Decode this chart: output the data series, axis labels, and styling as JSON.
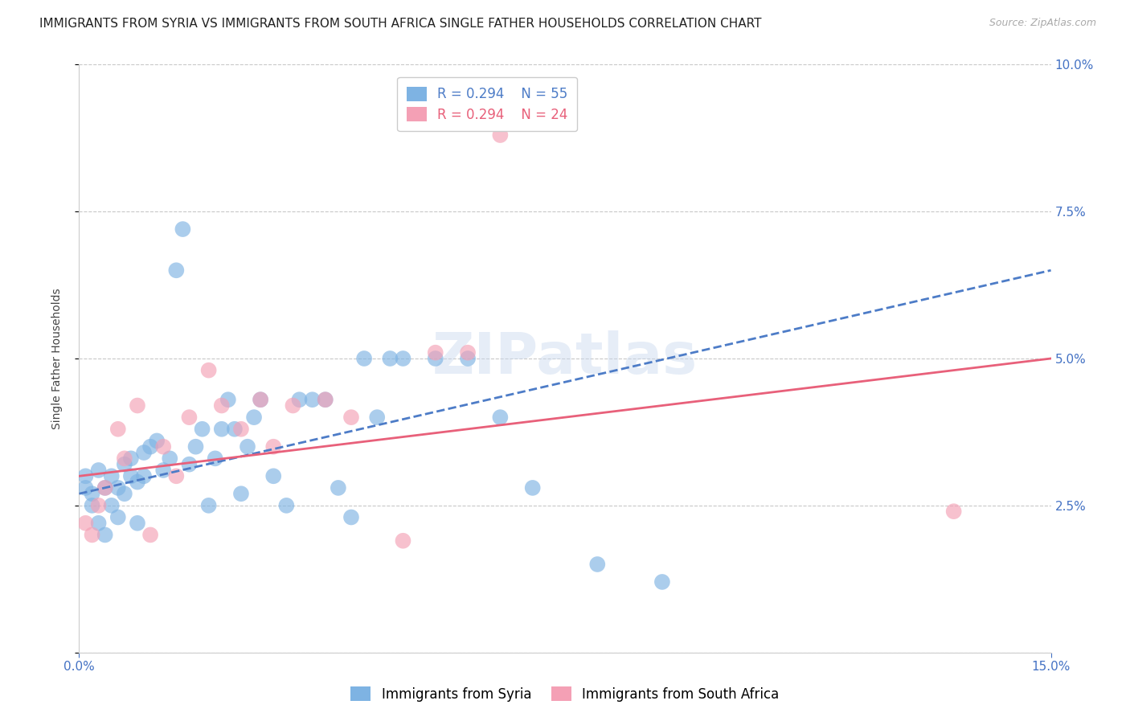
{
  "title": "IMMIGRANTS FROM SYRIA VS IMMIGRANTS FROM SOUTH AFRICA SINGLE FATHER HOUSEHOLDS CORRELATION CHART",
  "source": "Source: ZipAtlas.com",
  "ylabel": "Single Father Households",
  "xlim": [
    0.0,
    0.15
  ],
  "ylim": [
    0.0,
    0.1
  ],
  "yticks": [
    0.0,
    0.025,
    0.05,
    0.075,
    0.1
  ],
  "ytick_labels": [
    "",
    "2.5%",
    "5.0%",
    "7.5%",
    "10.0%"
  ],
  "xtick_positions": [
    0.0,
    0.15
  ],
  "xtick_labels": [
    "0.0%",
    "15.0%"
  ],
  "syria_R": 0.294,
  "syria_N": 55,
  "sa_R": 0.294,
  "sa_N": 24,
  "syria_color": "#7eb3e3",
  "sa_color": "#f4a0b5",
  "syria_line_color": "#4d7cc7",
  "sa_line_color": "#e8607a",
  "syria_x": [
    0.001,
    0.001,
    0.002,
    0.002,
    0.003,
    0.003,
    0.004,
    0.004,
    0.005,
    0.005,
    0.006,
    0.006,
    0.007,
    0.007,
    0.008,
    0.008,
    0.009,
    0.009,
    0.01,
    0.01,
    0.011,
    0.012,
    0.013,
    0.014,
    0.015,
    0.016,
    0.017,
    0.018,
    0.019,
    0.02,
    0.021,
    0.022,
    0.023,
    0.024,
    0.025,
    0.026,
    0.027,
    0.028,
    0.03,
    0.032,
    0.034,
    0.036,
    0.038,
    0.04,
    0.042,
    0.044,
    0.046,
    0.048,
    0.05,
    0.055,
    0.06,
    0.065,
    0.07,
    0.08,
    0.09
  ],
  "syria_y": [
    0.028,
    0.03,
    0.027,
    0.025,
    0.022,
    0.031,
    0.028,
    0.02,
    0.025,
    0.03,
    0.023,
    0.028,
    0.027,
    0.032,
    0.03,
    0.033,
    0.029,
    0.022,
    0.034,
    0.03,
    0.035,
    0.036,
    0.031,
    0.033,
    0.065,
    0.072,
    0.032,
    0.035,
    0.038,
    0.025,
    0.033,
    0.038,
    0.043,
    0.038,
    0.027,
    0.035,
    0.04,
    0.043,
    0.03,
    0.025,
    0.043,
    0.043,
    0.043,
    0.028,
    0.023,
    0.05,
    0.04,
    0.05,
    0.05,
    0.05,
    0.05,
    0.04,
    0.028,
    0.015,
    0.012
  ],
  "sa_x": [
    0.001,
    0.002,
    0.003,
    0.004,
    0.006,
    0.007,
    0.009,
    0.011,
    0.013,
    0.015,
    0.017,
    0.02,
    0.022,
    0.025,
    0.028,
    0.03,
    0.033,
    0.038,
    0.042,
    0.05,
    0.055,
    0.06,
    0.065,
    0.135
  ],
  "sa_y": [
    0.022,
    0.02,
    0.025,
    0.028,
    0.038,
    0.033,
    0.042,
    0.02,
    0.035,
    0.03,
    0.04,
    0.048,
    0.042,
    0.038,
    0.043,
    0.035,
    0.042,
    0.043,
    0.04,
    0.019,
    0.051,
    0.051,
    0.088,
    0.024
  ],
  "watermark": "ZIPatlas",
  "background_color": "#ffffff",
  "grid_color": "#c8c8c8",
  "tick_color": "#4472c4",
  "title_fontsize": 11,
  "axis_label_fontsize": 10,
  "tick_fontsize": 11
}
